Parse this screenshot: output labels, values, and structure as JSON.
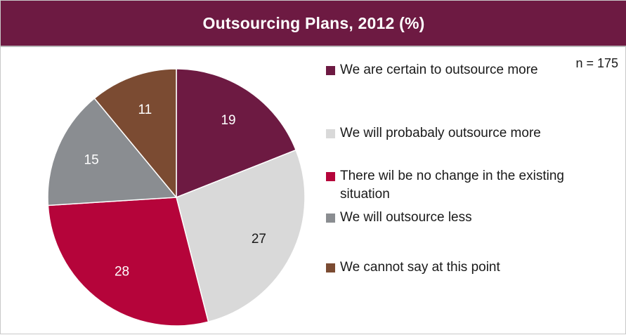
{
  "chart_data": {
    "type": "pie",
    "title": "Outsourcing Plans, 2012 (%)",
    "note": "n = 175",
    "slices": [
      {
        "label": "We are certain to outsource more",
        "value": 19,
        "color": "#6d1a42",
        "label_color": "#ffffff"
      },
      {
        "label": "We will probabaly outsource more",
        "value": 27,
        "color": "#d9d9d9",
        "label_color": "#1a1a1a"
      },
      {
        "label": "There wil be no change in the existing situation",
        "value": 28,
        "color": "#b5043a",
        "label_color": "#ffffff"
      },
      {
        "label": "We will outsource less",
        "value": 15,
        "color": "#8a8d91",
        "label_color": "#ffffff"
      },
      {
        "label": "We cannot say at this point",
        "value": 11,
        "color": "#7b4b32",
        "label_color": "#ffffff"
      }
    ],
    "start_angle_deg": 0,
    "direction": "clockwise",
    "legend_position": "right"
  }
}
